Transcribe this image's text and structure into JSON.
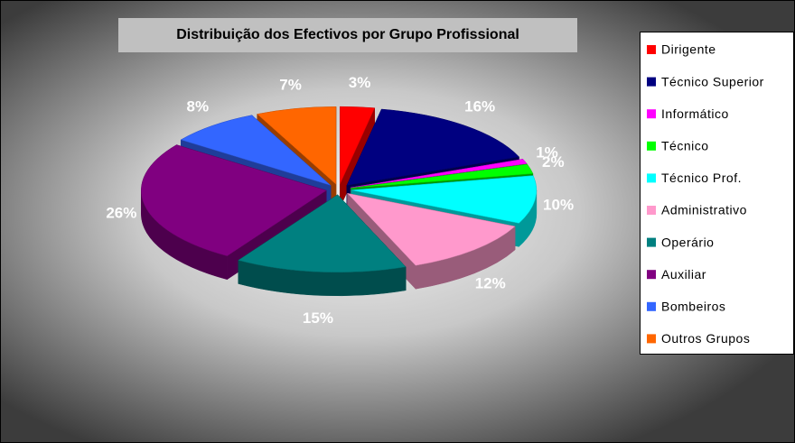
{
  "chart_data": {
    "type": "pie",
    "title": "Distribuição dos Efectivos por Grupo Profissional",
    "categories": [
      "Dirigente",
      "Técnico Superior",
      "Informático",
      "Técnico",
      "Técnico Prof.",
      "Administrativo",
      "Operário",
      "Auxiliar",
      "Bombeiros",
      "Outros Grupos"
    ],
    "values": [
      3,
      16,
      1,
      2,
      10,
      12,
      15,
      26,
      8,
      7
    ],
    "value_labels": [
      "3%",
      "16%",
      "1%",
      "2%",
      "10%",
      "12%",
      "15%",
      "26%",
      "8%",
      "7%"
    ],
    "colors": [
      "#ff0000",
      "#000080",
      "#ff00ff",
      "#00ff00",
      "#00ffff",
      "#ff99cc",
      "#008080",
      "#800080",
      "#3366ff",
      "#ff6600"
    ],
    "legend": "right"
  }
}
